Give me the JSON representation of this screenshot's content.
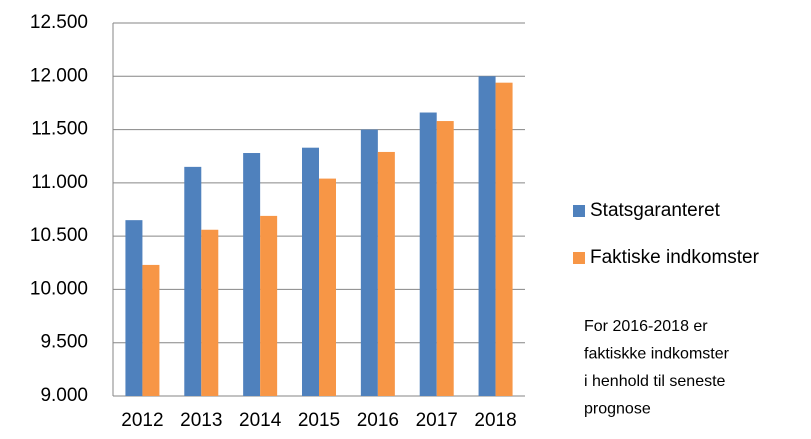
{
  "chart_data": {
    "type": "bar",
    "categories": [
      "2012",
      "2013",
      "2014",
      "2015",
      "2016",
      "2017",
      "2018"
    ],
    "series": [
      {
        "name": "Statsgaranteret",
        "color": "#4f81bd",
        "values": [
          10650,
          11150,
          11280,
          11330,
          11500,
          11660,
          12000
        ]
      },
      {
        "name": "Faktiske indkomster",
        "color": "#f79646",
        "values": [
          10230,
          10560,
          10690,
          11040,
          11290,
          11580,
          11940
        ]
      }
    ],
    "ylim": [
      9000,
      12500
    ],
    "yticks": [
      {
        "value": 9000,
        "label": "9.000"
      },
      {
        "value": 9500,
        "label": "9.500"
      },
      {
        "value": 10000,
        "label": "10.000"
      },
      {
        "value": 10500,
        "label": "10.500"
      },
      {
        "value": 11000,
        "label": "11.000"
      },
      {
        "value": 11500,
        "label": "11.500"
      },
      {
        "value": 12000,
        "label": "12.000"
      },
      {
        "value": 12500,
        "label": "12.500"
      }
    ],
    "grid": true,
    "legend": "right",
    "annotation": [
      "For 2016-2018 er",
      "faktiskke indkomster",
      "i henhold til seneste",
      "prognose"
    ]
  }
}
